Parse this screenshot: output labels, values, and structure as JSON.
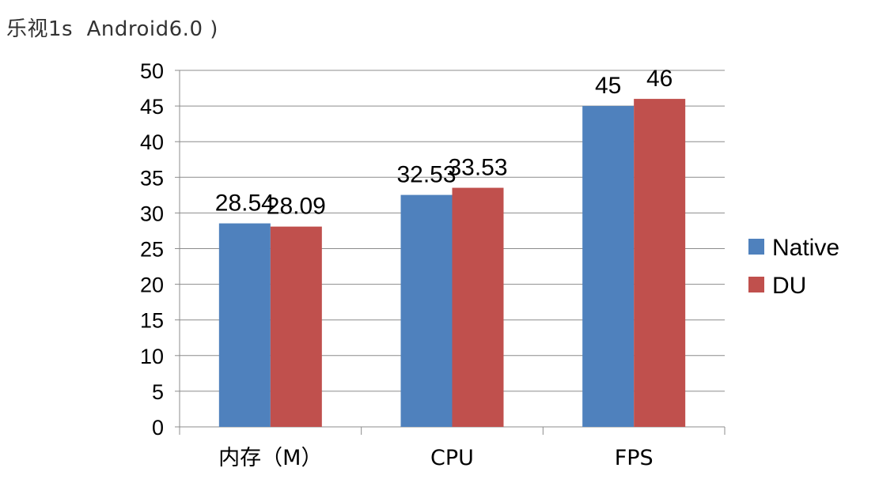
{
  "title": "乐视1s  Android6.0 )",
  "chart_data": {
    "type": "bar",
    "title": "",
    "categories": [
      "内存（M）",
      "CPU",
      "FPS"
    ],
    "series": [
      {
        "name": "Native",
        "values": [
          28.54,
          32.53,
          45
        ],
        "labels": [
          "28.54",
          "32.53",
          "45"
        ],
        "color": "#4F81BD"
      },
      {
        "name": "DU",
        "values": [
          28.09,
          33.53,
          46
        ],
        "labels": [
          "28.09",
          "33.53",
          "46"
        ],
        "color": "#C0504D"
      }
    ],
    "ylim": [
      0,
      50
    ],
    "yticks": [
      "0",
      "5",
      "10",
      "15",
      "20",
      "25",
      "30",
      "35",
      "40",
      "45",
      "50"
    ],
    "grid": true,
    "legend": "right"
  }
}
